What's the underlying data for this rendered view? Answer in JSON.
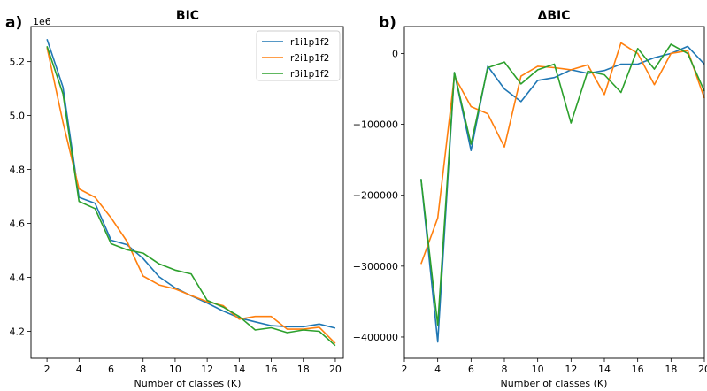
{
  "figure": {
    "panel_a_letter": "a)",
    "panel_b_letter": "b)"
  },
  "chart_data": [
    {
      "type": "line",
      "title": "BIC",
      "xlabel": "Number of classes (K)",
      "ylabel": "",
      "y_offset_label": "1e6",
      "xlim": [
        1,
        20.5
      ],
      "ylim": [
        4.1,
        5.33
      ],
      "x_ticks": [
        2,
        4,
        6,
        8,
        10,
        12,
        14,
        16,
        18,
        20
      ],
      "y_ticks": [
        4.2,
        4.4,
        4.6,
        4.8,
        5.0,
        5.2
      ],
      "grid": false,
      "legend": "top-right",
      "x": [
        2,
        3,
        4,
        5,
        6,
        7,
        8,
        9,
        10,
        11,
        12,
        13,
        14,
        15,
        16,
        17,
        18,
        19,
        20
      ],
      "series": [
        {
          "name": "r1i1p1f2",
          "color": "#1f77b4",
          "values": [
            5.283,
            5.105,
            4.697,
            4.675,
            4.538,
            4.521,
            4.47,
            4.402,
            4.361,
            4.332,
            4.305,
            4.275,
            4.25,
            4.235,
            4.221,
            4.217,
            4.217,
            4.227,
            4.212
          ]
        },
        {
          "name": "r2i1p1f2",
          "color": "#ff7f0e",
          "values": [
            5.253,
            4.974,
            4.728,
            4.697,
            4.621,
            4.533,
            4.405,
            4.372,
            4.357,
            4.333,
            4.31,
            4.295,
            4.245,
            4.255,
            4.255,
            4.208,
            4.208,
            4.215,
            4.155
          ]
        },
        {
          "name": "r3i1p1f2",
          "color": "#2ca02c",
          "values": [
            5.257,
            5.08,
            4.682,
            4.655,
            4.525,
            4.502,
            4.49,
            4.45,
            4.427,
            4.413,
            4.315,
            4.29,
            4.255,
            4.205,
            4.213,
            4.195,
            4.205,
            4.2,
            4.147
          ]
        }
      ]
    },
    {
      "type": "line",
      "title": "ΔBIC",
      "xlabel": "Number of classes (K)",
      "ylabel": "",
      "xlim": [
        2,
        20
      ],
      "ylim": [
        -430000,
        38000
      ],
      "x_ticks": [
        2,
        4,
        6,
        8,
        10,
        12,
        14,
        16,
        18,
        20
      ],
      "y_ticks": [
        0,
        -100000,
        -200000,
        -300000,
        -400000
      ],
      "y_tick_labels": [
        "0",
        "−100000",
        "−200000",
        "−300000",
        "−400000"
      ],
      "grid": false,
      "x": [
        3,
        4,
        5,
        6,
        7,
        8,
        9,
        10,
        11,
        12,
        13,
        14,
        15,
        16,
        17,
        18,
        19,
        20
      ],
      "series": [
        {
          "name": "r1i1p1f2",
          "color": "#1f77b4",
          "values": [
            -177000,
            -407000,
            -27000,
            -137000,
            -18000,
            -50000,
            -68000,
            -38000,
            -34000,
            -23000,
            -28000,
            -24000,
            -15000,
            -15000,
            -6000,
            0,
            10000,
            -15000
          ]
        },
        {
          "name": "r2i1p1f2",
          "color": "#ff7f0e",
          "values": [
            -297000,
            -232000,
            -32000,
            -75000,
            -85000,
            -132000,
            -32000,
            -18000,
            -20000,
            -23000,
            -16000,
            -58000,
            15000,
            0,
            -44000,
            0,
            4000,
            -63000
          ]
        },
        {
          "name": "r3i1p1f2",
          "color": "#2ca02c",
          "values": [
            -177000,
            -383000,
            -27000,
            -128000,
            -20000,
            -12000,
            -43000,
            -23000,
            -15000,
            -98000,
            -25000,
            -30000,
            -55000,
            7000,
            -22000,
            13000,
            0,
            -53000
          ]
        }
      ]
    }
  ]
}
